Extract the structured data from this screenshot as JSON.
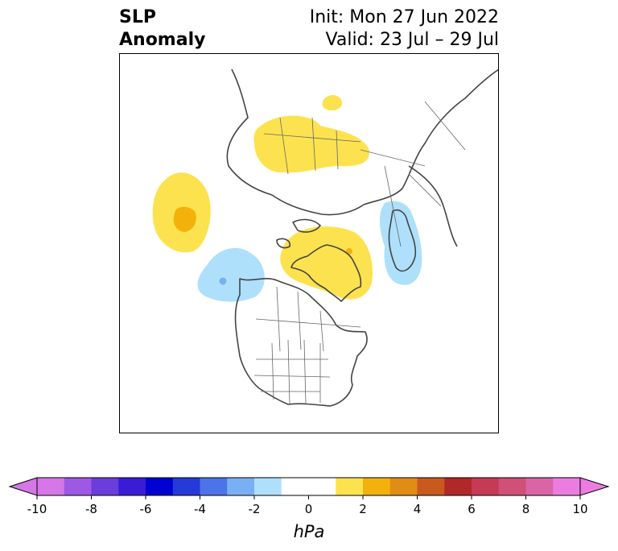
{
  "title": {
    "left_line1": "SLP",
    "left_line2": "Anomaly",
    "init": "Init: Mon 27 Jun 2022",
    "valid": "Valid: 23 Jul – 29 Jul"
  },
  "map": {
    "projection": "north-polar-stereographic",
    "anomalies": [
      {
        "name": "eurasia-high",
        "sign": "positive"
      },
      {
        "name": "barents-small-high",
        "sign": "positive"
      },
      {
        "name": "pacific-high",
        "sign": "positive"
      },
      {
        "name": "greenland-high",
        "sign": "positive"
      },
      {
        "name": "alaska-low",
        "sign": "negative"
      },
      {
        "name": "europe-low",
        "sign": "negative"
      }
    ]
  },
  "colorbar": {
    "unit": "hPa",
    "ticks": [
      "-10",
      "-8",
      "-6",
      "-4",
      "-2",
      "0",
      "2",
      "4",
      "6",
      "8",
      "10"
    ],
    "colors": [
      "#d577e6",
      "#9d59e3",
      "#6a3ddc",
      "#3a1cd6",
      "#0000d0",
      "#2639d9",
      "#4a74e8",
      "#78b0f3",
      "#aee0fb",
      "#ffffff",
      "#ffffff",
      "#fde24f",
      "#f3b10c",
      "#df8d14",
      "#c85a1d",
      "#b12828",
      "#c53a55",
      "#d05077",
      "#d965a6",
      "#ec7de0"
    ]
  }
}
